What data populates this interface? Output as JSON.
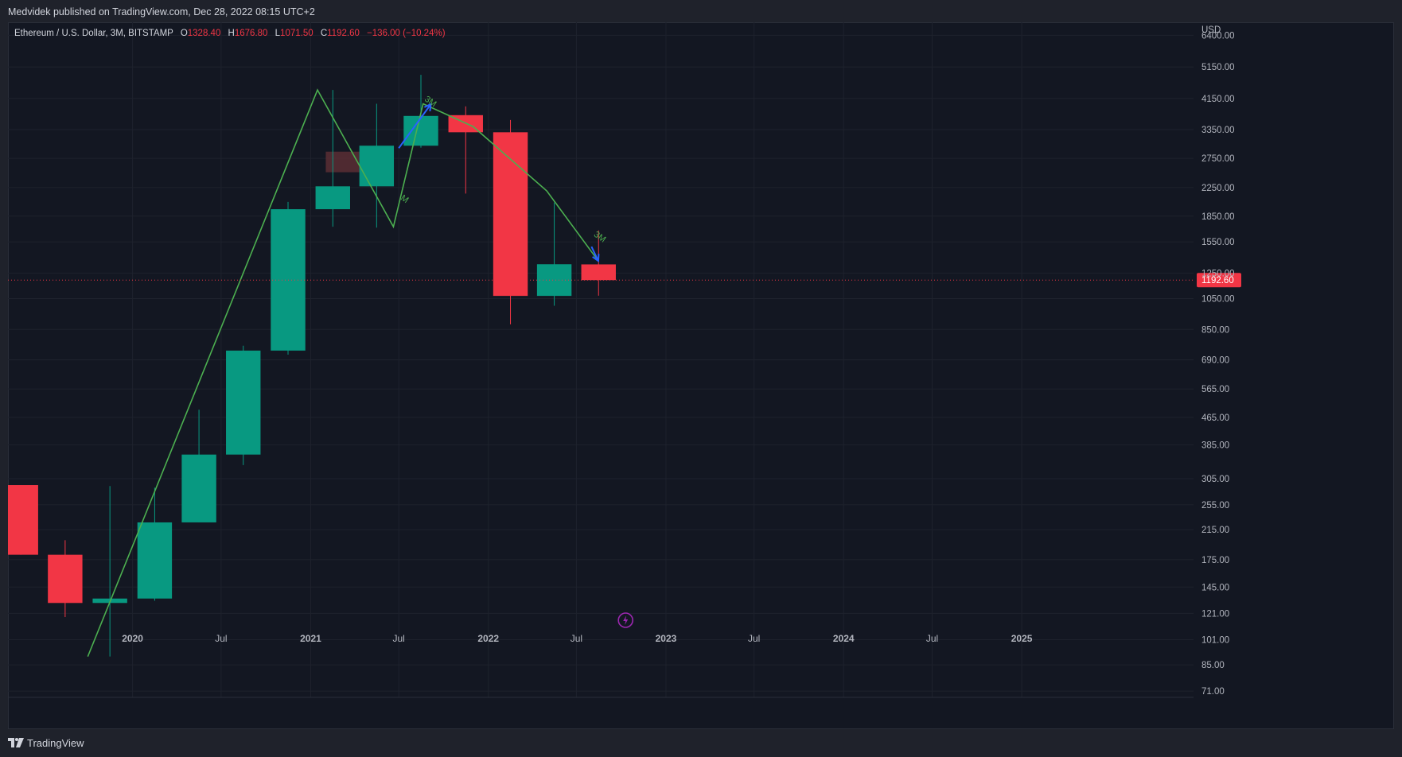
{
  "header": {
    "published_text": "Medvidek published on TradingView.com, Dec 28, 2022 08:15 UTC+2"
  },
  "legend": {
    "symbol": "Ethereum / U.S. Dollar, 3M, BITSTAMP",
    "o_label": "O",
    "o_value": "1328.40",
    "h_label": "H",
    "h_value": "1676.80",
    "l_label": "L",
    "l_value": "1071.50",
    "c_label": "C",
    "c_value": "1192.60",
    "change": "−136.00 (−10.24%)"
  },
  "footer": {
    "brand": "TradingView"
  },
  "colors": {
    "up": "#089981",
    "down": "#f23645",
    "grid": "#1e222d",
    "background": "#131722",
    "wave_line": "#4caf50",
    "arrow_blue": "#2962ff",
    "zone": "#5b2e34",
    "price_line": "#f23645",
    "flash_icon": "#9c27b0"
  },
  "chart_data": {
    "type": "candlestick",
    "title": "Ethereum / U.S. Dollar, 3M, BITSTAMP",
    "scale": "log",
    "currency_label": "USD",
    "ylim": [
      68,
      7000
    ],
    "xlim": [
      "2019-04-20",
      "2025-12-20"
    ],
    "y_ticks": [
      "6400.00",
      "5150.00",
      "4150.00",
      "3350.00",
      "2750.00",
      "2250.00",
      "1850.00",
      "1550.00",
      "1250.00",
      "1050.00",
      "850.00",
      "690.00",
      "565.00",
      "465.00",
      "385.00",
      "305.00",
      "255.00",
      "215.00",
      "175.00",
      "145.00",
      "121.00",
      "101.00",
      "85.00",
      "71.00"
    ],
    "x_ticks": [
      {
        "label": "2020",
        "date": "2020-01-01",
        "bold": true
      },
      {
        "label": "Jul",
        "date": "2020-07-01",
        "bold": false
      },
      {
        "label": "2021",
        "date": "2021-01-01",
        "bold": true
      },
      {
        "label": "Jul",
        "date": "2021-07-01",
        "bold": false
      },
      {
        "label": "2022",
        "date": "2022-01-01",
        "bold": true
      },
      {
        "label": "Jul",
        "date": "2022-07-01",
        "bold": false
      },
      {
        "label": "2023",
        "date": "2023-01-01",
        "bold": true
      },
      {
        "label": "Jul",
        "date": "2023-07-01",
        "bold": false
      },
      {
        "label": "2024",
        "date": "2024-01-01",
        "bold": true
      },
      {
        "label": "Jul",
        "date": "2024-07-01",
        "bold": false
      },
      {
        "label": "2025",
        "date": "2025-01-01",
        "bold": true
      }
    ],
    "candles": [
      {
        "date": "2019-04-01",
        "open": 292,
        "high": 292,
        "low": 181,
        "close": 181
      },
      {
        "date": "2019-07-01",
        "open": 181,
        "high": 200,
        "low": 118,
        "close": 130
      },
      {
        "date": "2019-10-01",
        "open": 130,
        "high": 290,
        "low": 90,
        "close": 134
      },
      {
        "date": "2020-01-01",
        "open": 134,
        "high": 287,
        "low": 132,
        "close": 226
      },
      {
        "date": "2020-04-01",
        "open": 226,
        "high": 490,
        "low": 226,
        "close": 360
      },
      {
        "date": "2020-07-01",
        "open": 360,
        "high": 760,
        "low": 335,
        "close": 735
      },
      {
        "date": "2020-10-01",
        "open": 735,
        "high": 2040,
        "low": 715,
        "close": 1940
      },
      {
        "date": "2021-01-01",
        "open": 1940,
        "high": 4400,
        "low": 1720,
        "close": 2270
      },
      {
        "date": "2021-04-01",
        "open": 2270,
        "high": 4000,
        "low": 1710,
        "close": 3000
      },
      {
        "date": "2021-07-01",
        "open": 3000,
        "high": 4880,
        "low": 2960,
        "close": 3680
      },
      {
        "date": "2021-10-01",
        "open": 3700,
        "high": 3930,
        "low": 2160,
        "close": 3290
      },
      {
        "date": "2022-01-01",
        "open": 3290,
        "high": 3580,
        "low": 880,
        "close": 1070
      },
      {
        "date": "2022-04-01",
        "open": 1070,
        "high": 2030,
        "low": 1000,
        "close": 1330
      },
      {
        "date": "2022-07-01",
        "open": 1328.4,
        "high": 1676.8,
        "low": 1071.5,
        "close": 1192.6
      }
    ],
    "last_price": "1192.60",
    "wave_line": [
      {
        "date": "2019-10-01",
        "price": 90
      },
      {
        "date": "2021-01-15",
        "price": 4400
      },
      {
        "date": "2021-06-20",
        "price": 1720
      },
      {
        "date": "2021-08-20",
        "price": 4000
      },
      {
        "date": "2021-12-01",
        "price": 3420
      },
      {
        "date": "2022-05-01",
        "price": 2200
      },
      {
        "date": "2022-08-15",
        "price": 1360
      }
    ],
    "blue_arrows": [
      {
        "from": {
          "date": "2021-07-01",
          "price": 2950
        },
        "to": {
          "date": "2021-09-05",
          "price": 3990
        }
      },
      {
        "from": {
          "date": "2022-08-01",
          "price": 1500
        },
        "to": {
          "date": "2022-08-15",
          "price": 1360
        }
      }
    ],
    "wave_labels": [
      {
        "text": "M",
        "date": "2021-07-10",
        "price": 2050
      },
      {
        "text": "3M",
        "date": "2021-09-01",
        "price": 4000
      },
      {
        "text": "3M",
        "date": "2022-08-15",
        "price": 1580
      }
    ],
    "zone": {
      "from": "2021-02-01",
      "to": "2021-06-20",
      "low": 2500,
      "high": 2880
    }
  }
}
